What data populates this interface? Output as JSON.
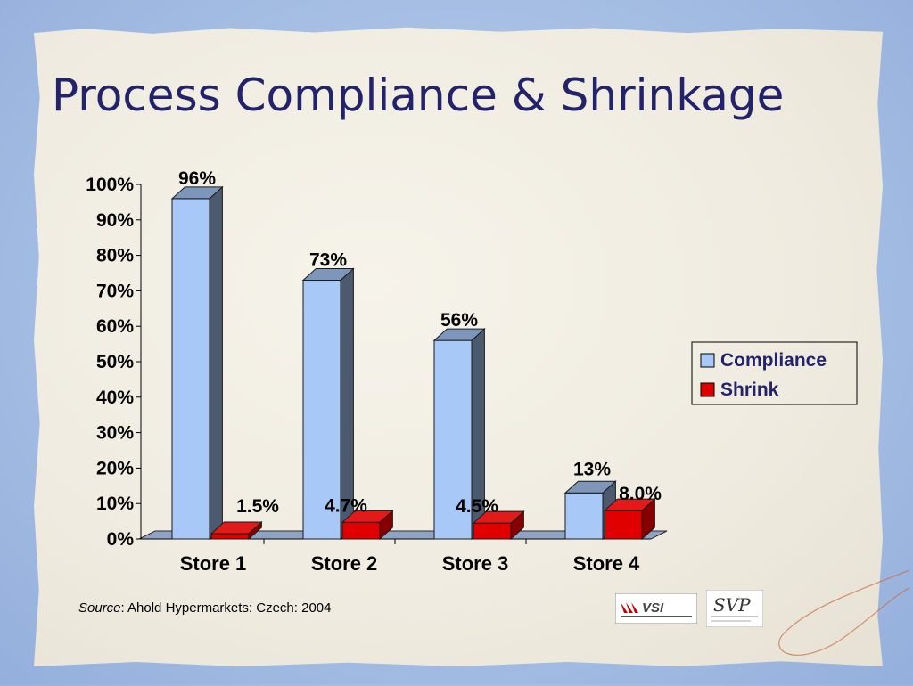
{
  "slide": {
    "title": "Process Compliance & Shrinkage",
    "source_label": "Source",
    "source_text": ": Ahold Hypermarkets: Czech: 2004",
    "logos": [
      "VSI",
      "SVP"
    ]
  },
  "colors": {
    "compliance": "#a8c8f8",
    "shrink": "#e00000",
    "title": "#23236b"
  },
  "chart_data": {
    "type": "bar",
    "categories": [
      "Store 1",
      "Store 2",
      "Store 3",
      "Store 4"
    ],
    "series": [
      {
        "name": "Compliance",
        "values": [
          96,
          73,
          56,
          13
        ],
        "labels": [
          "96%",
          "73%",
          "56%",
          "13%"
        ]
      },
      {
        "name": "Shrink",
        "values": [
          1.5,
          4.7,
          4.5,
          8.0
        ],
        "labels": [
          "1.5%",
          "4.7%",
          "4.5%",
          "8.0%"
        ]
      }
    ],
    "ylim": [
      0,
      100
    ],
    "yticks": [
      "0%",
      "10%",
      "20%",
      "30%",
      "40%",
      "50%",
      "60%",
      "70%",
      "80%",
      "90%",
      "100%"
    ],
    "legend_position": "right",
    "grid": false
  }
}
